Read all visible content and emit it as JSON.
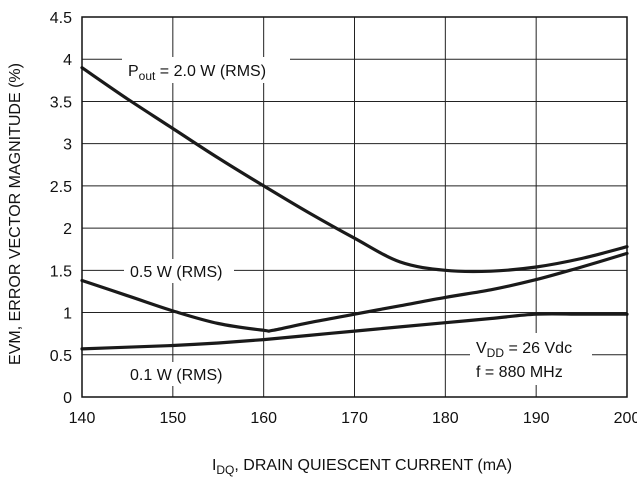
{
  "chart_data": {
    "type": "line",
    "xlabel_main": "I",
    "xlabel_sub": "DQ",
    "xlabel_rest": ", DRAIN QUIESCENT CURRENT (mA)",
    "ylabel": "EVM, ERROR VECTOR MAGNITUDE (%)",
    "xlim": [
      140,
      200
    ],
    "ylim": [
      0,
      4.5
    ],
    "x_ticks": [
      "140",
      "150",
      "160",
      "170",
      "180",
      "190",
      "200"
    ],
    "y_ticks": [
      "0",
      "0.5",
      "1",
      "1.5",
      "2",
      "2.5",
      "3",
      "3.5",
      "4",
      "4.5"
    ],
    "grid": true,
    "series": [
      {
        "name_main": "P",
        "name_sub": "out",
        "name_rest": " = 2.0 W (RMS)",
        "x": [
          140,
          145,
          150,
          155,
          160,
          165,
          170,
          175,
          180,
          185,
          190,
          195,
          200
        ],
        "y": [
          3.9,
          3.53,
          3.18,
          2.83,
          2.5,
          2.18,
          1.88,
          1.6,
          1.5,
          1.49,
          1.54,
          1.64,
          1.78
        ]
      },
      {
        "name": "0.5 W (RMS)",
        "x": [
          140,
          145,
          150,
          155,
          160,
          161,
          165,
          170,
          175,
          180,
          185,
          190,
          195,
          200
        ],
        "y": [
          1.38,
          1.2,
          1.02,
          0.87,
          0.79,
          0.79,
          0.88,
          0.98,
          1.08,
          1.18,
          1.27,
          1.39,
          1.54,
          1.7
        ]
      },
      {
        "name": "0.1 W (RMS)",
        "x": [
          140,
          145,
          150,
          155,
          160,
          165,
          170,
          175,
          180,
          185,
          190,
          195,
          200
        ],
        "y": [
          0.57,
          0.59,
          0.61,
          0.64,
          0.68,
          0.73,
          0.78,
          0.83,
          0.88,
          0.93,
          0.98,
          0.98,
          0.98
        ]
      }
    ],
    "conditions": {
      "vdd_main": "V",
      "vdd_sub": "DD",
      "vdd_rest": " = 26 Vdc",
      "freq": "f = 880 MHz"
    }
  }
}
